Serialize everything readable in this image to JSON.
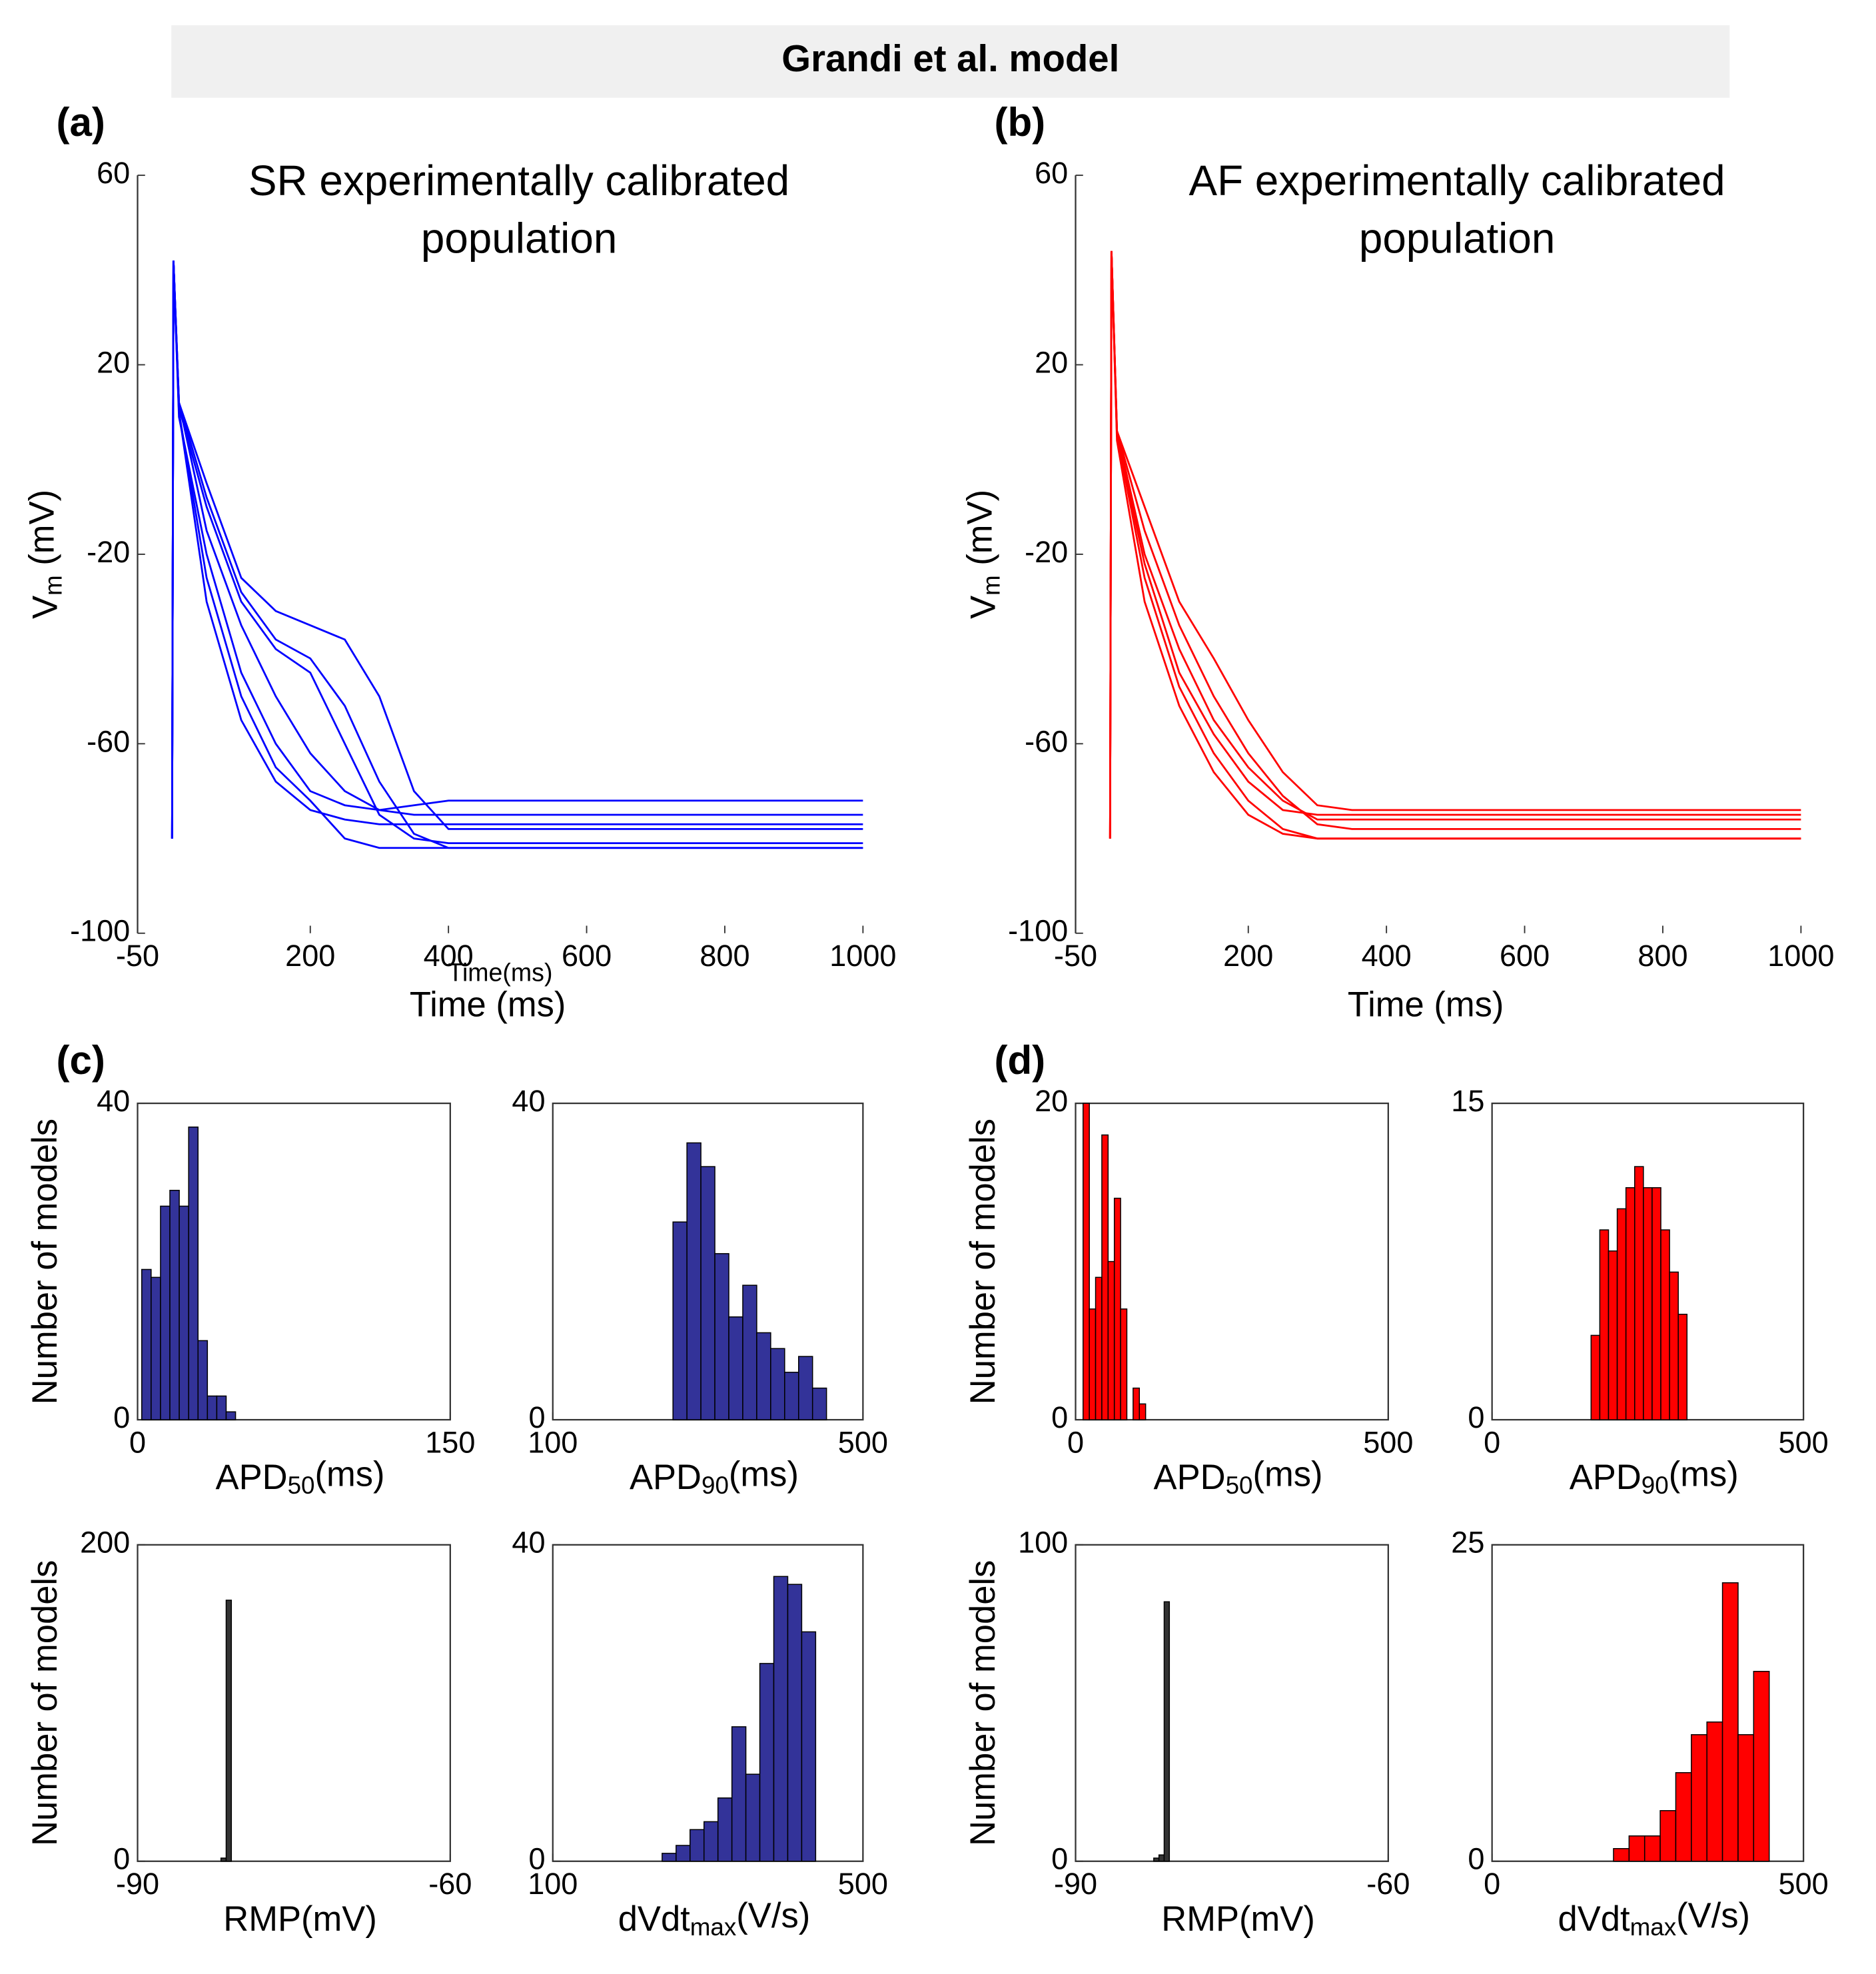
{
  "figure_title": "Grandi et al. model",
  "chart_data": [
    {
      "type": "line",
      "panel": "(a)",
      "title": [
        "SR experimentally calibrated",
        "population"
      ],
      "xlabel": "Time (ms)",
      "ylabel": {
        "base": "V",
        "sub": "m",
        "rest": " (mV)"
      },
      "annotation": "Time(ms)",
      "xlim": [
        -50,
        1000
      ],
      "xticks": [
        -50,
        200,
        400,
        600,
        800,
        1000
      ],
      "ylim": [
        -100,
        60
      ],
      "yticks": [
        -100,
        -60,
        -20,
        20,
        60
      ],
      "x": [
        0,
        2,
        10,
        50,
        100,
        150,
        200,
        250,
        300,
        350,
        400,
        1000
      ],
      "series": [
        {
          "color": "#0000ff",
          "values": [
            -80,
            42,
            10,
            -30,
            -55,
            -68,
            -74,
            -76,
            -77,
            -77,
            -77,
            -77
          ]
        },
        {
          "color": "#0000ff",
          "values": [
            -80,
            42,
            12,
            -15,
            -35,
            -50,
            -62,
            -70,
            -74,
            -75,
            -75,
            -75
          ]
        },
        {
          "color": "#0000ff",
          "values": [
            -80,
            42,
            12,
            -5,
            -25,
            -32,
            -35,
            -38,
            -50,
            -70,
            -78,
            -78
          ]
        },
        {
          "color": "#0000ff",
          "values": [
            -80,
            42,
            11,
            -10,
            -30,
            -40,
            -45,
            -60,
            -75,
            -80,
            -81,
            -81
          ]
        },
        {
          "color": "#0000ff",
          "values": [
            -80,
            42,
            9,
            -20,
            -45,
            -60,
            -70,
            -73,
            -74,
            -73,
            -72,
            -72
          ]
        },
        {
          "color": "#0000ff",
          "values": [
            -80,
            42,
            12,
            -8,
            -28,
            -38,
            -42,
            -52,
            -68,
            -79,
            -82,
            -82
          ]
        },
        {
          "color": "#0000ff",
          "values": [
            -80,
            42,
            10,
            -25,
            -50,
            -65,
            -72,
            -80,
            -82,
            -82,
            -82,
            -82
          ]
        }
      ]
    },
    {
      "type": "line",
      "panel": "(b)",
      "title": [
        "AF experimentally calibrated",
        "population"
      ],
      "xlabel": "Time (ms)",
      "ylabel": {
        "base": "V",
        "sub": "m",
        "rest": " (mV)"
      },
      "xlim": [
        -50,
        1000
      ],
      "xticks": [
        -50,
        200,
        400,
        600,
        800,
        1000
      ],
      "ylim": [
        -100,
        60
      ],
      "yticks": [
        -100,
        -60,
        -20,
        20,
        60
      ],
      "x": [
        0,
        2,
        10,
        50,
        100,
        150,
        200,
        250,
        300,
        350,
        400,
        1000
      ],
      "series": [
        {
          "color": "#ff0000",
          "values": [
            -80,
            44,
            6,
            -20,
            -40,
            -55,
            -65,
            -72,
            -76,
            -76,
            -76,
            -76
          ]
        },
        {
          "color": "#ff0000",
          "values": [
            -80,
            44,
            6,
            -10,
            -30,
            -42,
            -55,
            -66,
            -73,
            -74,
            -74,
            -74
          ]
        },
        {
          "color": "#ff0000",
          "values": [
            -80,
            44,
            5,
            -25,
            -48,
            -62,
            -72,
            -78,
            -80,
            -80,
            -80,
            -80
          ]
        },
        {
          "color": "#ff0000",
          "values": [
            -80,
            44,
            4,
            -30,
            -52,
            -66,
            -75,
            -79,
            -80,
            -80,
            -80,
            -80
          ]
        },
        {
          "color": "#ff0000",
          "values": [
            -80,
            44,
            6,
            -15,
            -35,
            -50,
            -62,
            -71,
            -77,
            -78,
            -78,
            -78
          ]
        },
        {
          "color": "#ff0000",
          "values": [
            -80,
            44,
            5,
            -22,
            -45,
            -58,
            -68,
            -74,
            -75,
            -75,
            -75,
            -75
          ]
        }
      ]
    },
    {
      "type": "histogram",
      "panel": "(c)",
      "ylabel": "Number of models",
      "xlabel": {
        "base": "APD",
        "sub": "50",
        "rest": "(ms)"
      },
      "color": "#333399",
      "xlim": [
        0,
        150
      ],
      "xticks": [
        0,
        150
      ],
      "ylim": [
        0,
        40
      ],
      "yticks": [
        0,
        40
      ],
      "bins": [
        2,
        6.5,
        11,
        15.5,
        20,
        24.5,
        29,
        33.5,
        38,
        42.5,
        47
      ],
      "values": [
        19,
        18,
        27,
        29,
        27,
        37,
        10,
        3,
        3,
        1
      ]
    },
    {
      "type": "histogram",
      "xlabel": {
        "base": "APD",
        "sub": "90",
        "rest": "(ms)"
      },
      "color": "#333399",
      "xlim": [
        100,
        500
      ],
      "xticks": [
        100,
        500
      ],
      "ylim": [
        0,
        40
      ],
      "yticks": [
        0,
        40
      ],
      "bins": [
        255,
        273,
        291,
        309,
        327,
        345,
        363,
        381,
        399,
        417,
        435,
        453
      ],
      "values": [
        25,
        35,
        32,
        21,
        13,
        17,
        11,
        9,
        6,
        8,
        4
      ]
    },
    {
      "type": "histogram",
      "panel": "(d)",
      "ylabel": "Number of models",
      "xlabel": {
        "base": "APD",
        "sub": "50",
        "rest": "(ms)"
      },
      "color": "#ff0000",
      "xlim": [
        0,
        500
      ],
      "xticks": [
        0,
        500
      ],
      "ylim": [
        0,
        20
      ],
      "yticks": [
        0,
        20
      ],
      "bins": [
        12,
        22,
        32,
        42,
        52,
        62,
        72,
        82,
        92,
        102,
        112
      ],
      "values": [
        20,
        7,
        9,
        18,
        10,
        14,
        7,
        0,
        2,
        1
      ]
    },
    {
      "type": "histogram",
      "xlabel": {
        "base": "APD",
        "sub": "90",
        "rest": "(ms)"
      },
      "color": "#ff0000",
      "xlim": [
        0,
        500
      ],
      "xticks": [
        0,
        500
      ],
      "ylim": [
        0,
        15
      ],
      "yticks": [
        0,
        15
      ],
      "bins": [
        159,
        173,
        187,
        201,
        215,
        229,
        243,
        257,
        271,
        285,
        299,
        313
      ],
      "values": [
        4,
        9,
        8,
        10,
        11,
        12,
        11,
        11,
        9,
        7,
        5
      ]
    },
    {
      "type": "histogram",
      "ylabel": "Number of models",
      "xlabel": "RMP(mV)",
      "color": "#333333",
      "xlim": [
        -90,
        -60
      ],
      "xticks": [
        -90,
        -60
      ],
      "ylim": [
        0,
        200
      ],
      "yticks": [
        0,
        200
      ],
      "bins": [
        -82,
        -81.5,
        -81
      ],
      "values": [
        2,
        165
      ]
    },
    {
      "type": "histogram",
      "xlabel": {
        "base": "dVdt",
        "sub": "max",
        "rest": "(V/s)"
      },
      "color": "#333399",
      "xlim": [
        100,
        500
      ],
      "xticks": [
        100,
        500
      ],
      "ylim": [
        0,
        40
      ],
      "yticks": [
        0,
        40
      ],
      "bins": [
        241,
        259,
        277,
        295,
        313,
        331,
        349,
        367,
        385,
        403,
        421,
        439
      ],
      "values": [
        1,
        2,
        4,
        5,
        8,
        17,
        11,
        25,
        36,
        35,
        29
      ]
    },
    {
      "type": "histogram",
      "ylabel": "Number of models",
      "xlabel": "RMP(mV)",
      "color": "#333333",
      "xlim": [
        -90,
        -60
      ],
      "xticks": [
        -90,
        -60
      ],
      "ylim": [
        0,
        100
      ],
      "yticks": [
        0,
        100
      ],
      "bins": [
        -82.5,
        -82,
        -81.5,
        -81
      ],
      "values": [
        1,
        2,
        82
      ]
    },
    {
      "type": "histogram",
      "xlabel": {
        "base": "dVdt",
        "sub": "max",
        "rest": "(V/s)"
      },
      "color": "#ff0000",
      "xlim": [
        0,
        500
      ],
      "xticks": [
        0,
        500
      ],
      "ylim": [
        0,
        25
      ],
      "yticks": [
        0,
        25
      ],
      "bins": [
        195,
        220,
        245,
        270,
        295,
        320,
        345,
        370,
        395,
        420,
        445
      ],
      "values": [
        1,
        2,
        2,
        4,
        7,
        10,
        11,
        22,
        10,
        15
      ]
    }
  ]
}
